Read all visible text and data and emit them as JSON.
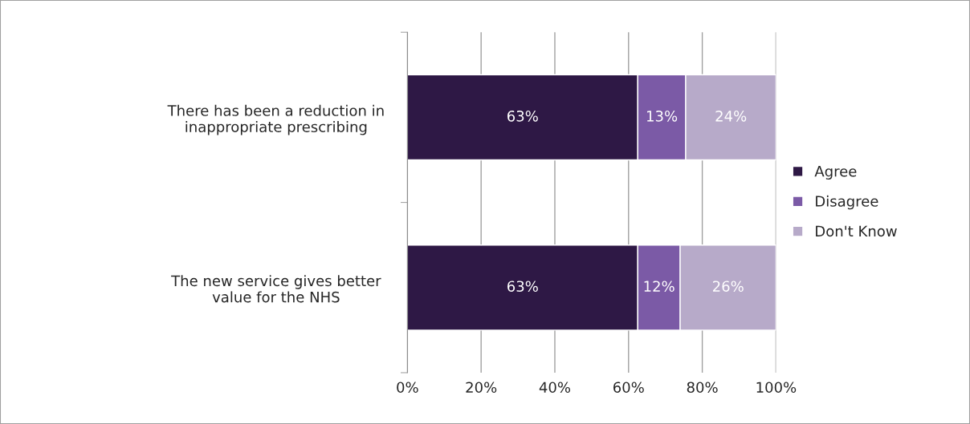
{
  "chart_data": {
    "type": "bar",
    "orientation": "horizontal",
    "stacked": true,
    "categories": [
      "There has been a reduction in inappropriate prescribing",
      "The new service gives better value for the NHS"
    ],
    "series": [
      {
        "name": "Agree",
        "color": "#2e1845",
        "values": [
          62.5,
          62.5
        ],
        "value_labels": [
          "63%",
          "63%"
        ]
      },
      {
        "name": "Disagree",
        "color": "#7b5aa6",
        "values": [
          13,
          11.5
        ],
        "value_labels": [
          "13%",
          "12%"
        ]
      },
      {
        "name": "Don't Know",
        "color": "#b7aac9",
        "values": [
          24.5,
          26
        ],
        "value_labels": [
          "24%",
          "26%"
        ]
      }
    ],
    "xlim": [
      0,
      100
    ],
    "xticks": [
      {
        "value": 0,
        "label": "0%"
      },
      {
        "value": 20,
        "label": "20%"
      },
      {
        "value": 40,
        "label": "40%"
      },
      {
        "value": 60,
        "label": "60%"
      },
      {
        "value": 80,
        "label": "80%"
      },
      {
        "value": 100,
        "label": "100%"
      }
    ],
    "grid": "x",
    "legend": "right"
  }
}
